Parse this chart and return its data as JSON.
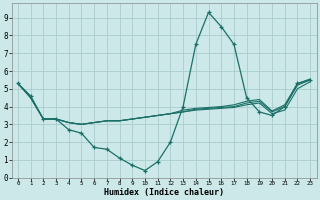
{
  "xlabel": "Humidex (Indice chaleur)",
  "bg_color": "#cce8e8",
  "grid_color": "#aacccc",
  "line_color": "#1a7068",
  "series_main": [
    5.3,
    4.6,
    3.3,
    3.3,
    2.7,
    2.5,
    1.7,
    1.6,
    1.1,
    0.7,
    0.4,
    0.9,
    2.0,
    4.0,
    7.5,
    9.3,
    8.5,
    7.5,
    4.5,
    3.7,
    3.5,
    4.0,
    5.3,
    5.5
  ],
  "series_t1": [
    5.3,
    4.5,
    3.3,
    3.3,
    3.1,
    3.0,
    3.1,
    3.2,
    3.2,
    3.3,
    3.4,
    3.5,
    3.6,
    3.7,
    3.8,
    3.85,
    3.9,
    3.95,
    4.1,
    4.2,
    3.6,
    3.8,
    5.0,
    5.4
  ],
  "series_t2": [
    5.3,
    4.5,
    3.3,
    3.3,
    3.1,
    3.0,
    3.1,
    3.2,
    3.2,
    3.3,
    3.4,
    3.5,
    3.6,
    3.7,
    3.85,
    3.9,
    3.95,
    4.0,
    4.2,
    4.3,
    3.7,
    4.0,
    5.2,
    5.5
  ],
  "series_t3": [
    5.3,
    4.5,
    3.3,
    3.3,
    3.1,
    3.0,
    3.1,
    3.2,
    3.2,
    3.3,
    3.4,
    3.5,
    3.6,
    3.8,
    3.9,
    3.95,
    4.0,
    4.1,
    4.3,
    4.4,
    3.75,
    4.1,
    5.3,
    5.55
  ],
  "xlim": [
    -0.5,
    23.5
  ],
  "ylim": [
    0,
    9.8
  ],
  "yticks": [
    0,
    1,
    2,
    3,
    4,
    5,
    6,
    7,
    8,
    9
  ],
  "xticks": [
    0,
    1,
    2,
    3,
    4,
    5,
    6,
    7,
    8,
    9,
    10,
    11,
    12,
    13,
    14,
    15,
    16,
    17,
    18,
    19,
    20,
    21,
    22,
    23
  ]
}
